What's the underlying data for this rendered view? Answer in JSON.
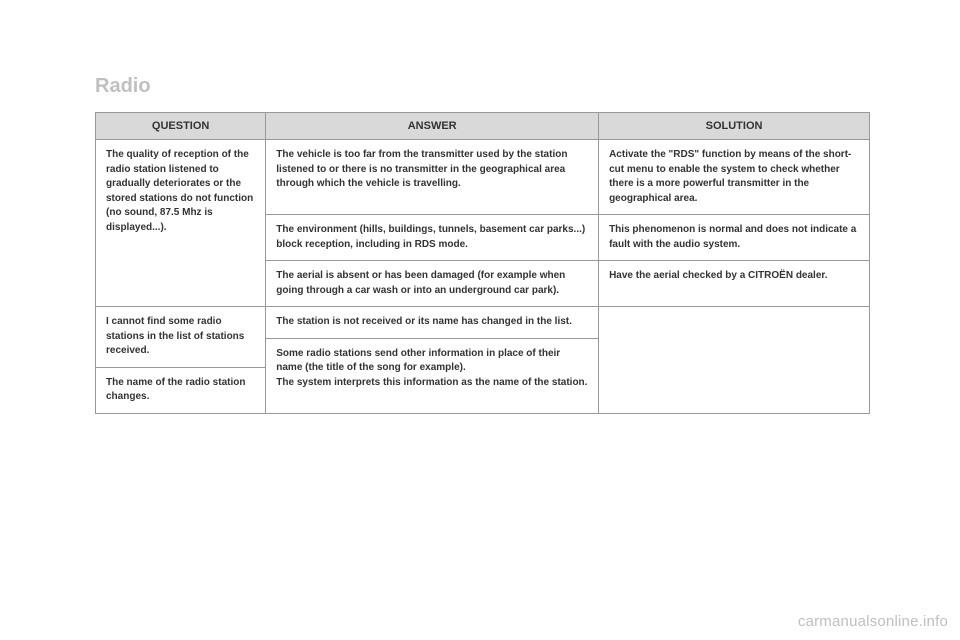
{
  "title": "Radio",
  "headers": {
    "question": "QUESTION",
    "answer": "ANSWER",
    "solution": "SOLUTION"
  },
  "rows": {
    "q1": "The quality of reception of the radio station listened to gradually deteriorates or the stored stations do not function (no sound, 87.5 Mhz is displayed...).",
    "a1": "The vehicle is too far from the transmitter used by the station listened to or there is no transmitter in the geographical area through which the vehicle is travelling.",
    "s1": "Activate the \"RDS\" function by means of the short-cut menu to enable the system to check whether there is a more powerful transmitter in the geographical area.",
    "a2": "The environment (hills, buildings, tunnels, basement car parks...) block reception, including in RDS mode.",
    "s2": "This phenomenon is normal and does not indicate a fault with the audio system.",
    "a3": "The aerial is absent or has been damaged (for example when going through a car wash or into an underground car park).",
    "s3": "Have the aerial checked by a CITROËN dealer.",
    "q2": "I cannot find some radio stations in the list of stations received.",
    "a4": "The station is not received or its name has changed in the list.",
    "a5": "Some radio stations send other information in place of their name (the title of the song for example).\nThe system interprets this information as the name of the station.",
    "q3": "The name of the radio station changes."
  },
  "watermark": "carmanualsonline.info",
  "colors": {
    "header_bg": "#d9d9d9",
    "border": "#999999",
    "title_color": "#c0c0c0",
    "text": "#333333",
    "watermark_color": "#bfbfbf"
  }
}
